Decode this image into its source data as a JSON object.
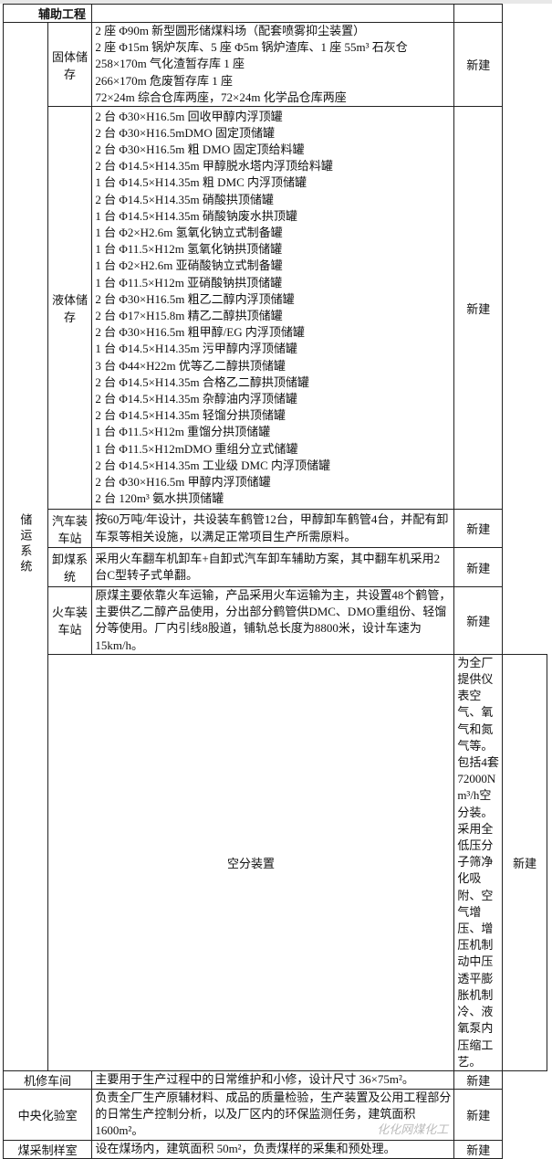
{
  "section_title": "辅助工程",
  "group_label": "储运系统",
  "rows": [
    {
      "name": "固体储存",
      "status": "新建",
      "lines": [
        "2 座 Φ90m 新型圆形储煤料场（配套喷雾抑尘装置）",
        "2 座 Φ15m 锅炉灰库、5 座 Φ5m 锅炉渣库、1 座 55m³ 石灰仓",
        "258×170m 气化渣暂存库 1 座",
        "266×170m 危废暂存库 1 座",
        "72×24m 综合仓库两座，72×24m 化学品仓库两座"
      ]
    },
    {
      "name": "液体储存",
      "status": "新建",
      "lines": [
        "2 台 Φ30×H16.5m 回收甲醇内浮顶罐",
        "2 台 Φ30×H16.5mDMO 固定顶储罐",
        "2 台 Φ30×H16.5m 粗 DMO 固定顶给料罐",
        "2 台 Φ14.5×H14.35m 甲醇脱水塔内浮顶给料罐",
        "1 台 Φ14.5×H14.35m 粗 DMC 内浮顶储罐",
        "2 台 Φ14.5×H14.35m 硝酸拱顶储罐",
        "1 台 Φ14.5×H14.35m 硝酸钠废水拱顶罐",
        "1 台 Φ2×H2.6m 氢氧化钠立式制备罐",
        "1 台 Φ11.5×H12m 氢氧化钠拱顶储罐",
        "1 台 Φ2×H2.6m 亚硝酸钠立式制备罐",
        "1 台 Φ11.5×H12m 亚硝酸钠拱顶储罐",
        "2 台 Φ30×H16.5m 粗乙二醇内浮顶储罐",
        "2 台 Φ17×H15.8m 精乙二醇拱顶储罐",
        "2 台 Φ30×H16.5m 粗甲醇/EG 内浮顶储罐",
        "1 台 Φ14.5×H14.35m 污甲醇内浮顶储罐",
        "3 台 Φ44×H22m 优等乙二醇拱顶储罐",
        "2 台 Φ14.5×H14.35m 合格乙二醇拱顶储罐",
        "2 台 Φ14.5×H14.35m 杂醇油内浮顶储罐",
        "2 台 Φ14.5×H14.35m 轻馏分拱顶储罐",
        "1 台 Φ11.5×H12m 重馏分拱顶储罐",
        "1 台 Φ11.5×H12mDMO 重组分立式储罐",
        "2 台 Φ14.5×H14.35m 工业级 DMC 内浮顶储罐",
        "2 台 Φ30×H16.5m 甲醇内浮顶储罐",
        "2 台 120m³ 氨水拱顶储罐"
      ]
    },
    {
      "name": "汽车装车站",
      "status": "新建",
      "text": "按60万吨/年设计，共设装车鹤管12台，甲醇卸车鹤管4台，并配有卸车泵等相关设施，以满足正常项目生产所需原料。"
    },
    {
      "name": "卸煤系统",
      "status": "新建",
      "text": "采用火车翻车机卸车+自卸式汽车卸车辅助方案，其中翻车机采用2台C型转子式单翻。"
    },
    {
      "name": "火车装车站",
      "status": "新建",
      "text": "原煤主要依靠火车运输，产品采用火车运输为主，共设置48个鹤管，主要供乙二醇产品使用，分出部分鹤管供DMC、DMO重组份、轻馏分等使用。厂内引线8股道，铺轨总长度为8800米，设计车速为15km/h。"
    },
    {
      "name": "空分装置",
      "status": "新建",
      "text": "为全厂提供仪表空气、氧气和氮气等。包括4套72000Nm³/h空分装。采用全低压分子筛净化吸附、空气增压、增压机制动中压透平膨胀机制冷、液氧泵内压缩工艺。"
    },
    {
      "name": "机修车间",
      "status": "新建",
      "text": "主要用于生产过程中的日常维护和小修，设计尺寸 36×75m²。"
    },
    {
      "name": "中央化验室",
      "status": "新建",
      "text": "负责全厂生产原辅材料、成品的质量检验，生产装置及公用工程部分的日常生产控制分析，以及厂区内的环保监测任务，建筑面积 1600m²。"
    },
    {
      "name": "煤采制样室",
      "status": "新建",
      "text": "设在煤场内，建筑面积 50m²，负责煤样的采集和预处理。"
    }
  ],
  "watermark": "化化网煤化工"
}
